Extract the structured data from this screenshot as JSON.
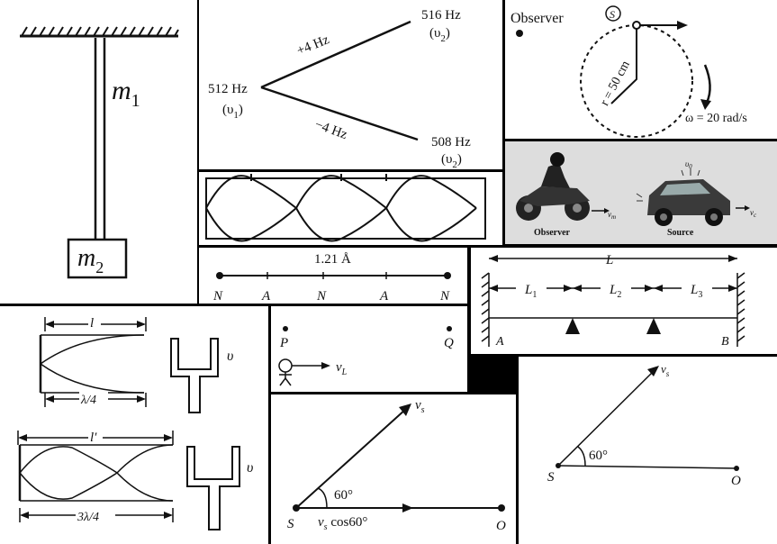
{
  "pendulum": {
    "m1": "m",
    "m1_sub": "1",
    "m2": "m",
    "m2_sub": "2"
  },
  "beats": {
    "f_center": "512 Hz",
    "v1": "(υ",
    "v1_sub": "1",
    "close": ")",
    "f_upper": "516 Hz",
    "v2_upper": "(υ",
    "v2_upper_sub": "2",
    "f_lower": "508 Hz",
    "v2_lower": "(υ",
    "v2_lower_sub": "2",
    "plus": "+4 Hz",
    "minus": "−4 Hz"
  },
  "rotation": {
    "observer": "Observer",
    "source_symbol": "S",
    "radius": "r = 50 cm",
    "omega": "ω = 20 rad/s"
  },
  "motorbike": {
    "observer": "Observer",
    "source": "Source",
    "vm": "v",
    "vm_sub": "m",
    "vc": "v",
    "vc_sub": "c",
    "v0": "υ",
    "v0_sub": "0"
  },
  "node_line": {
    "distance": "1.21 Å",
    "labels": [
      "N",
      "A",
      "N",
      "A",
      "N"
    ]
  },
  "string_lengths": {
    "total": "L",
    "l1": "L",
    "l1_sub": "1",
    "l2": "L",
    "l2_sub": "2",
    "l3": "L",
    "l3_sub": "3",
    "end_a": "A",
    "end_b": "B"
  },
  "tubes": {
    "top_length": "l",
    "top_wavelength": "λ/4",
    "bottom_length": "l′",
    "bottom_wavelength": "3λ/4",
    "fork_label_top": "υ",
    "fork_label_bottom": "υ"
  },
  "listener": {
    "p": "P",
    "q": "Q",
    "vl": "v",
    "vl_sub": "L"
  },
  "source_angle_1": {
    "vs": "v",
    "vs_sub": "s",
    "angle": "60°",
    "s": "S",
    "o": "O",
    "component": "v",
    "component_sub": "s",
    "component_rest": " cos60°"
  },
  "source_angle_2": {
    "vs": "v",
    "vs_sub": "s",
    "angle": "60°",
    "s": "S",
    "o": "O"
  }
}
